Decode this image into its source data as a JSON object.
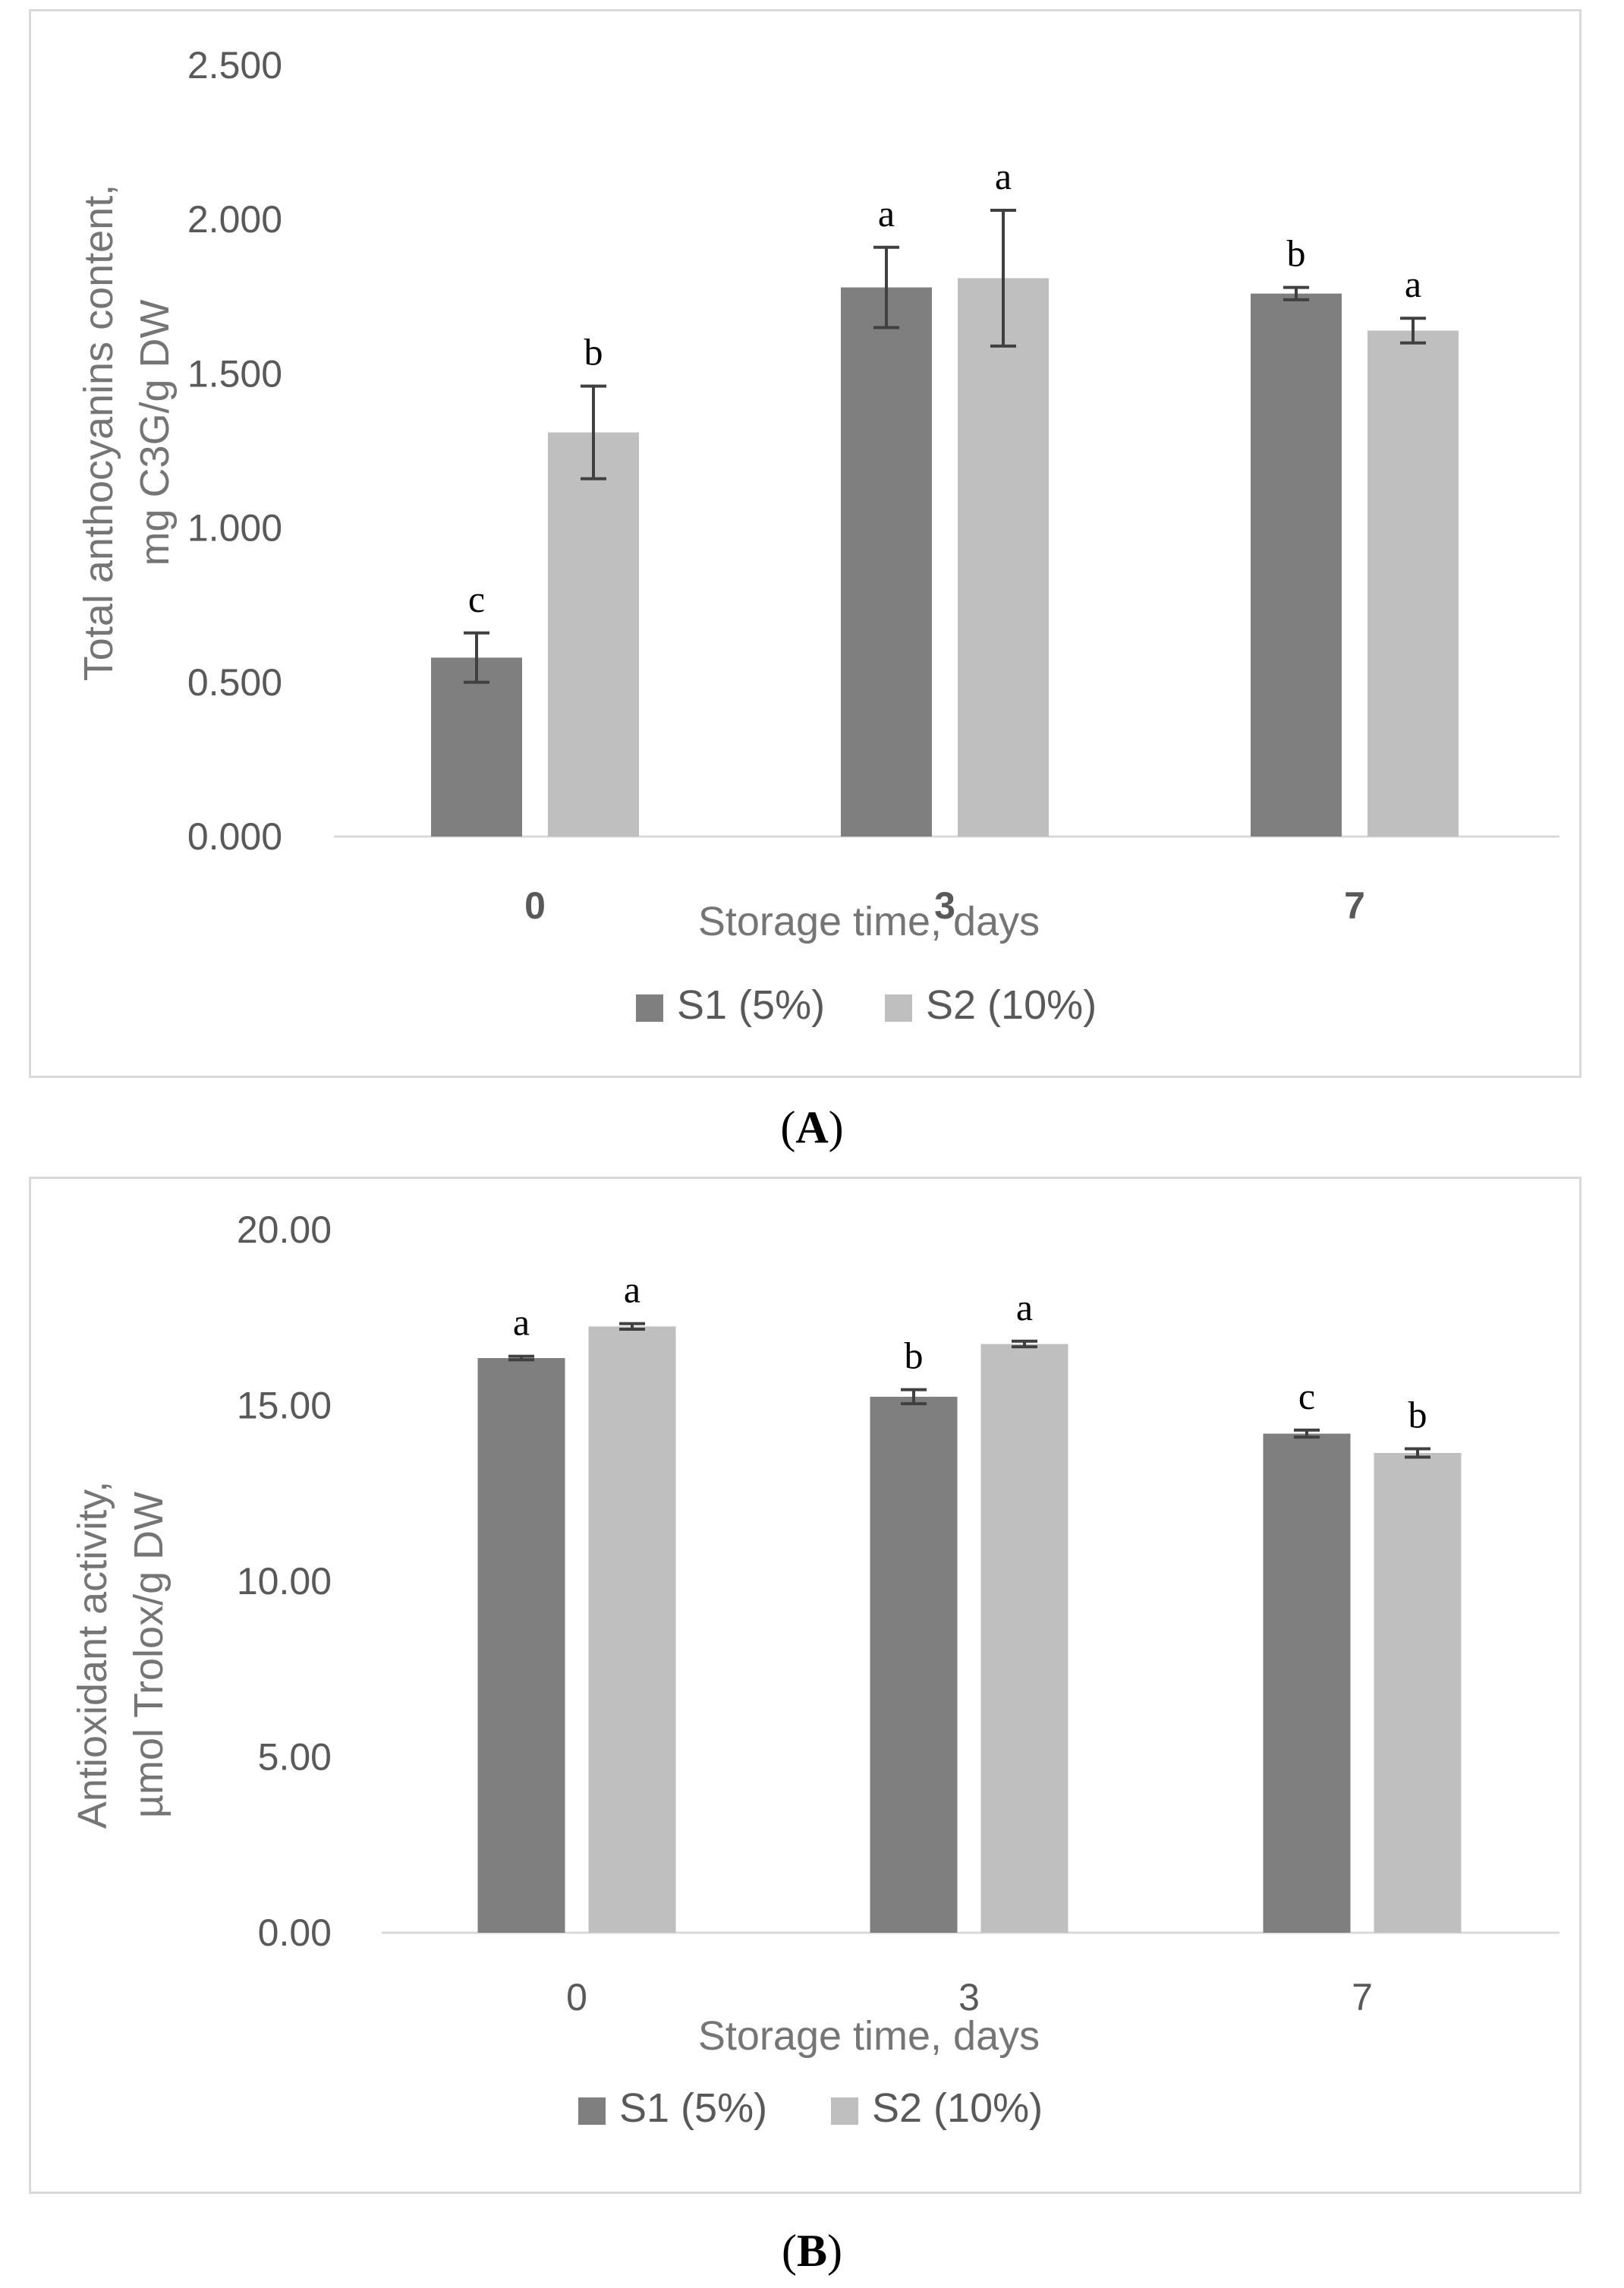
{
  "chart_data": [
    {
      "panel_label": "A",
      "type": "bar",
      "categories": [
        "0",
        "3",
        "7"
      ],
      "xlabel": "Storage time, days",
      "ylabel_lines": [
        "Total anthocyanins content,",
        "mg C3G/g DW"
      ],
      "ylim": [
        0,
        2.5
      ],
      "yticks": [
        "0.000",
        "0.500",
        "1.000",
        "1.500",
        "2.000",
        "2.500"
      ],
      "tick_values": [
        0,
        0.5,
        1.0,
        1.5,
        2.0,
        2.5
      ],
      "series": [
        {
          "name": "S1 (5%)",
          "color": "#7f7f7f",
          "values": [
            0.58,
            1.78,
            1.76
          ],
          "errors": [
            0.08,
            0.13,
            0.02
          ],
          "letters": [
            "c",
            "a",
            "b"
          ]
        },
        {
          "name": "S2 (10%)",
          "color": "#bfbfbf",
          "values": [
            1.31,
            1.81,
            1.64
          ],
          "errors": [
            0.15,
            0.22,
            0.04
          ],
          "letters": [
            "b",
            "a",
            "a"
          ]
        }
      ]
    },
    {
      "panel_label": "B",
      "type": "bar",
      "categories": [
        "0",
        "3",
        "7"
      ],
      "xlabel": "Storage time, days",
      "ylabel_lines": [
        "Antioxidant activity,",
        "µmol Trolox/g DW"
      ],
      "ylim": [
        0,
        20
      ],
      "yticks": [
        "0.00",
        "5.00",
        "10.00",
        "15.00",
        "20.00"
      ],
      "tick_values": [
        0,
        5,
        10,
        15,
        20
      ],
      "series": [
        {
          "name": "S1 (5%)",
          "color": "#7f7f7f",
          "values": [
            16.35,
            15.25,
            14.2
          ],
          "errors": [
            0.05,
            0.2,
            0.1
          ],
          "letters": [
            "a",
            "b",
            "c"
          ]
        },
        {
          "name": "S2 (10%)",
          "color": "#bfbfbf",
          "values": [
            17.25,
            16.75,
            13.65
          ],
          "errors": [
            0.08,
            0.08,
            0.12
          ],
          "letters": [
            "a",
            "a",
            "b"
          ]
        }
      ]
    }
  ]
}
